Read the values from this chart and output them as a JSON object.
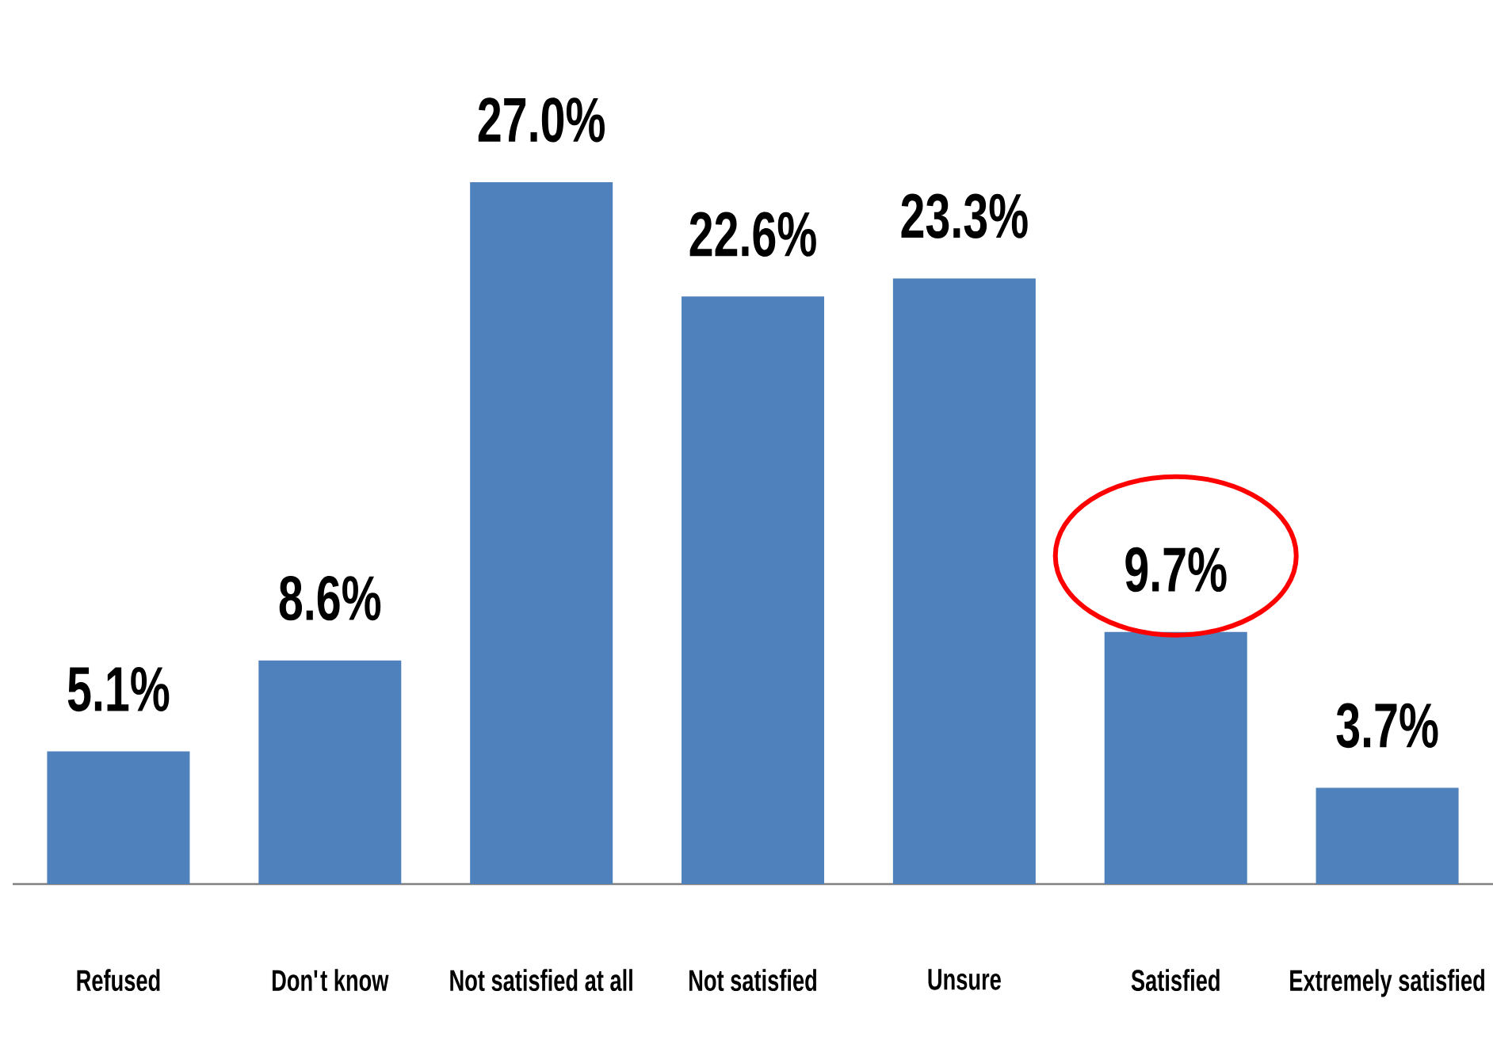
{
  "chart_data": {
    "type": "bar",
    "categories": [
      "Refused",
      "Don't know",
      "Not satisfied at all",
      "Not satisfied",
      "Unsure",
      "Satisfied",
      "Extremely satisfied"
    ],
    "values": [
      5.1,
      8.6,
      27.0,
      22.6,
      23.3,
      9.7,
      3.7
    ],
    "value_labels": [
      "5.1%",
      "8.6%",
      "27.0%",
      "22.6%",
      "23.3%",
      "9.7%",
      "3.7%"
    ],
    "color": "#4f81bd"
  }
}
